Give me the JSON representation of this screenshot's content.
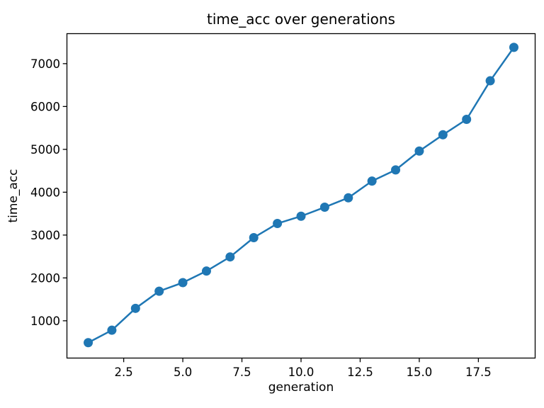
{
  "figure": {
    "title": "time_acc over generations",
    "xlabel": "generation",
    "ylabel": "time_acc"
  },
  "chart_data": {
    "type": "line",
    "title": "time_acc over generations",
    "xlabel": "generation",
    "ylabel": "time_acc",
    "x": [
      1,
      2,
      3,
      4,
      5,
      6,
      7,
      8,
      9,
      10,
      11,
      12,
      13,
      14,
      15,
      16,
      17,
      18,
      19
    ],
    "y": [
      490,
      780,
      1290,
      1690,
      1890,
      2160,
      2490,
      2940,
      3270,
      3440,
      3650,
      3870,
      4260,
      4520,
      4960,
      5340,
      5700,
      6600,
      7380
    ],
    "marker": "o",
    "line_color": "#1f77b4",
    "background_color": "#ffffff",
    "axis_color": "#000000",
    "grid": false,
    "legend_position": "none",
    "xlim": [
      0.1,
      19.9
    ],
    "ylim": [
      130,
      7700
    ],
    "xticks": [
      2.5,
      5.0,
      7.5,
      10.0,
      12.5,
      15.0,
      17.5
    ],
    "xtick_labels": [
      "2.5",
      "5.0",
      "7.5",
      "10.0",
      "12.5",
      "15.0",
      "17.5"
    ],
    "yticks": [
      1000,
      2000,
      3000,
      4000,
      5000,
      6000,
      7000
    ],
    "ytick_labels": [
      "1000",
      "2000",
      "3000",
      "4000",
      "5000",
      "6000",
      "7000"
    ]
  }
}
